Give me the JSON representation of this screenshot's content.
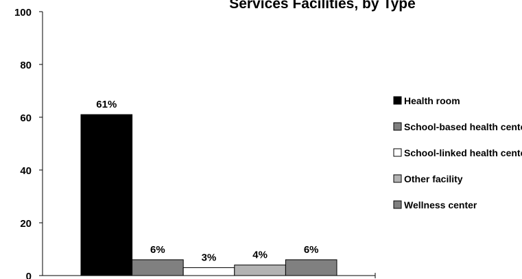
{
  "chart_data": {
    "type": "bar",
    "title": "Services Facilities, by Type",
    "xlabel": "",
    "ylabel": "",
    "ylim": [
      0,
      100
    ],
    "yticks": [
      0,
      20,
      40,
      60,
      80,
      100
    ],
    "grid": false,
    "legend_position": "right",
    "series": [
      {
        "name": "Health room",
        "value": 61,
        "label": "61%",
        "color": "#000000"
      },
      {
        "name": "School-based health center",
        "value": 6,
        "label": "6%",
        "color": "#808080"
      },
      {
        "name": "School-linked health center",
        "value": 3,
        "label": "3%",
        "color": "#ffffff"
      },
      {
        "name": "Other facility",
        "value": 4,
        "label": "4%",
        "color": "#b3b3b3"
      },
      {
        "name": "Wellness center",
        "value": 6,
        "label": "6%",
        "color": "#808080"
      }
    ]
  }
}
